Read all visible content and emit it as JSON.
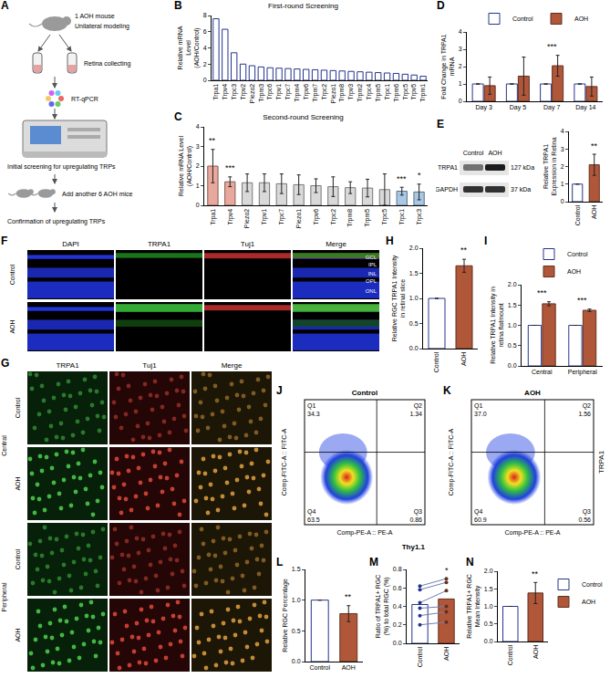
{
  "chart_data": [
    {
      "panel": "B",
      "type": "bar",
      "title": "First-round Screening",
      "y_label": "Relative mRNA Level (AOH/Control)",
      "categories": [
        "Trpa1",
        "Trpv4",
        "Trpc3",
        "Trpv2",
        "Piezo2",
        "Trpm3",
        "Trpc6",
        "Trpv1",
        "Trpc7",
        "Trpm4",
        "Trpv6",
        "Trpm7",
        "Trpc2",
        "Piezo1",
        "Trpm8",
        "Trpv3",
        "Trpm2",
        "Trpc4",
        "Trpm5",
        "Trpc1",
        "Trpm6",
        "Trpc5",
        "Trpv5",
        "Trpm1"
      ],
      "values": [
        7.6,
        6.3,
        3.4,
        2.0,
        1.8,
        1.65,
        1.55,
        1.5,
        1.45,
        1.4,
        1.35,
        1.3,
        1.25,
        1.2,
        1.15,
        1.1,
        1.05,
        1.0,
        0.95,
        0.9,
        0.85,
        0.75,
        0.65,
        0.5
      ],
      "color": "#ffffff",
      "ylim": [
        0,
        8
      ],
      "yticks": [
        0,
        2,
        4,
        6,
        8
      ],
      "grid": false
    },
    {
      "panel": "C",
      "type": "bar",
      "title": "Second-round Screening",
      "y_label": "Relative mRNA Level (AOH/Control)",
      "categories": [
        "Trpa1",
        "Trpv4",
        "Piezo2",
        "Trpv1",
        "Trpc7",
        "Piezo1",
        "Trpv6",
        "Trpc2",
        "Trpm8",
        "Trpm5",
        "Trpc5",
        "Trpc1",
        "Trpc3"
      ],
      "values": [
        2.0,
        1.2,
        1.15,
        1.15,
        1.1,
        1.05,
        1.0,
        0.95,
        0.9,
        0.88,
        0.8,
        0.72,
        0.68
      ],
      "errors": [
        0.85,
        0.25,
        0.45,
        0.45,
        0.5,
        0.5,
        0.35,
        0.5,
        0.3,
        0.45,
        0.8,
        0.2,
        0.4
      ],
      "colors": [
        "#e8a89c",
        "#e8a89c",
        "#d9d9d9",
        "#d9d9d9",
        "#d9d9d9",
        "#d9d9d9",
        "#d9d9d9",
        "#d9d9d9",
        "#d9d9d9",
        "#d9d9d9",
        "#d9d9d9",
        "#a9c8e6",
        "#a9c8e6"
      ],
      "ylim": [
        0,
        4
      ],
      "yticks": [
        0,
        1,
        2,
        3,
        4
      ],
      "grid": false,
      "annotations": [
        {
          "text": "**",
          "category": "Trpa1"
        },
        {
          "text": "***",
          "category": "Trpv4"
        },
        {
          "text": "***",
          "category": "Trpc1"
        },
        {
          "text": "*",
          "category": "Trpc3"
        }
      ]
    },
    {
      "panel": "D",
      "type": "bar",
      "y_label": "Fold Change in TRPA1 mRNA",
      "categories": [
        "Day 3",
        "Day 5",
        "Day 7",
        "Day 14"
      ],
      "series": [
        {
          "name": "Control",
          "color": "#ffffff",
          "values": [
            1,
            1,
            1,
            1
          ],
          "errors": [
            0,
            0,
            0,
            0
          ]
        },
        {
          "name": "AOH",
          "color": "#b0573a",
          "values": [
            0.9,
            1.45,
            2.05,
            0.85
          ],
          "errors": [
            0.5,
            1.1,
            0.6,
            0.55
          ]
        }
      ],
      "ylim": [
        0,
        4
      ],
      "yticks": [
        0,
        1,
        2,
        3,
        4
      ],
      "legend": "top",
      "grid": false,
      "annotations": [
        {
          "text": "***",
          "category": "Day 7"
        }
      ]
    },
    {
      "panel": "E",
      "type": "bar",
      "y_label": "Relative TRPA1 Expression in Retina",
      "categories": [
        "Control",
        "AOH"
      ],
      "values": [
        1,
        2.1
      ],
      "errors": [
        0,
        0.6
      ],
      "colors": [
        "#ffffff",
        "#b0573a"
      ],
      "ylim": [
        0,
        4
      ],
      "yticks": [
        0,
        1,
        2,
        3,
        4
      ],
      "grid": false,
      "annotations": [
        {
          "text": "**",
          "category": "AOH"
        }
      ]
    },
    {
      "panel": "H",
      "type": "bar",
      "y_label": "Relative RGC TRPA1 Intensity in retinal slice",
      "categories": [
        "Control",
        "AOH"
      ],
      "values": [
        1,
        1.65
      ],
      "errors": [
        0,
        0.13
      ],
      "colors": [
        "#ffffff",
        "#b0573a"
      ],
      "ylim": [
        0,
        2
      ],
      "yticks": [
        {
          "value": 0,
          "label": "0.0"
        },
        0.5,
        {
          "value": 1,
          "label": "1.0"
        },
        1.5,
        {
          "value": 2,
          "label": "2.0"
        }
      ],
      "grid": false,
      "annotations": [
        {
          "text": "**",
          "category": "AOH"
        }
      ]
    },
    {
      "panel": "I",
      "type": "bar",
      "y_label": "Relative TRPA1 Intensity in retina flatmount",
      "categories": [
        "Central",
        "Peripheral"
      ],
      "series": [
        {
          "name": "Control",
          "color": "#ffffff",
          "values": [
            1,
            1
          ],
          "errors": [
            0,
            0
          ]
        },
        {
          "name": "AOH",
          "color": "#b0573a",
          "values": [
            1.53,
            1.37
          ],
          "errors": [
            0.05,
            0.03
          ]
        }
      ],
      "ylim": [
        0,
        2
      ],
      "yticks": [
        {
          "value": 0,
          "label": "0.0"
        },
        0.5,
        {
          "value": 1,
          "label": "1.0"
        },
        1.5,
        {
          "value": 2,
          "label": "2.0"
        }
      ],
      "legend": "top",
      "grid": false,
      "annotations": [
        {
          "text": "***",
          "category": "Central"
        },
        {
          "text": "***",
          "category": "Peripheral"
        }
      ]
    },
    {
      "panel": "L",
      "type": "bar",
      "y_label": "Relative RGC Percentage",
      "categories": [
        "Control",
        "AOH"
      ],
      "values": [
        1,
        0.78
      ],
      "errors": [
        0,
        0.13
      ],
      "colors": [
        "#ffffff",
        "#b0573a"
      ],
      "ylim": [
        0,
        1.5
      ],
      "yticks": [
        {
          "value": 0,
          "label": "0.0"
        },
        0.5,
        {
          "value": 1,
          "label": "1.0"
        },
        1.5
      ],
      "grid": false,
      "annotations": [
        {
          "text": "**",
          "category": "AOH"
        }
      ]
    },
    {
      "panel": "M",
      "type": "bar",
      "y_label": "Ratio of TRPA1+ RGC (%) to total RGC (%)",
      "categories": [
        "Control",
        "AOH"
      ],
      "values": [
        0.42,
        0.48
      ],
      "colors": [
        "#ffffff",
        "#b0573a"
      ],
      "pairs": [
        [
          0.3,
          0.34
        ],
        [
          0.62,
          0.7
        ],
        [
          0.44,
          0.57
        ],
        [
          0.2,
          0.23
        ],
        [
          0.58,
          0.66
        ],
        [
          0.38,
          0.4
        ]
      ],
      "ylim": [
        0,
        0.8
      ],
      "yticks": [
        {
          "value": 0,
          "label": "0.0"
        },
        0.2,
        0.4,
        0.6,
        0.8
      ],
      "grid": false,
      "annotations": [
        {
          "text": "*",
          "category": "AOH"
        }
      ]
    },
    {
      "panel": "N",
      "type": "bar",
      "y_label": "Relative TRPA1+ RGC Mean Intensity",
      "categories": [
        "Control",
        "AOH"
      ],
      "values": [
        1,
        1.38
      ],
      "errors": [
        0,
        0.3
      ],
      "colors": [
        "#ffffff",
        "#b0573a"
      ],
      "ylim": [
        0,
        2
      ],
      "yticks": [
        {
          "value": 0,
          "label": "0.0"
        },
        0.5,
        {
          "value": 1,
          "label": "1.0"
        },
        1.5,
        {
          "value": 2,
          "label": "2.0"
        }
      ],
      "legend": "right",
      "grid": false,
      "annotations": [
        {
          "text": "**",
          "category": "AOH"
        }
      ]
    }
  ],
  "diagrams": {
    "A": {
      "panel": "A",
      "steps": [
        "1 AOH mouse",
        "Unilateral modeling",
        "Retina collecting",
        "RT-qPCR",
        "Initial screening for upregulating TRPs",
        "Add another 6 AOH mice",
        "Confirmation of upregulating TRPs"
      ]
    },
    "E_blot": {
      "columns": [
        "Control",
        "AOH"
      ],
      "bands": [
        {
          "name": "TRPA1",
          "size": "127 kDa"
        },
        {
          "name": "GAPDH",
          "size": "37 kDa"
        }
      ]
    },
    "F": {
      "panel": "F",
      "columns": [
        "DAPI",
        "TRPA1",
        "Tuj1",
        "Merge"
      ],
      "rows": [
        "Control",
        "AOH"
      ],
      "layers": [
        "GCL",
        "IPL",
        "INL",
        "OPL",
        "ONL"
      ]
    },
    "G": {
      "panel": "G",
      "columns": [
        "TRPA1",
        "Tuj1",
        "Merge"
      ],
      "groups": [
        "Central",
        "Peripheral"
      ],
      "rows": [
        "Control",
        "AOH"
      ]
    },
    "flow": {
      "y_axis": "Comp-FITC-A :: FITC-A",
      "x_axis": "Comp-PE-A :: PE-A",
      "x_marker": "Thy1.1",
      "y_marker": "TRPA1",
      "panels": [
        {
          "panel": "J",
          "title": "Control",
          "quadrants": [
            {
              "name": "Q1",
              "value": "34.3"
            },
            {
              "name": "Q2",
              "value": "1.34"
            },
            {
              "name": "Q3",
              "value": "0.86"
            },
            {
              "name": "Q4",
              "value": "63.5"
            }
          ]
        },
        {
          "panel": "K",
          "title": "AOH",
          "quadrants": [
            {
              "name": "Q1",
              "value": "37.0"
            },
            {
              "name": "Q2",
              "value": "1.56"
            },
            {
              "name": "Q3",
              "value": "0.56"
            },
            {
              "name": "Q4",
              "value": "60.9"
            }
          ]
        }
      ]
    }
  }
}
